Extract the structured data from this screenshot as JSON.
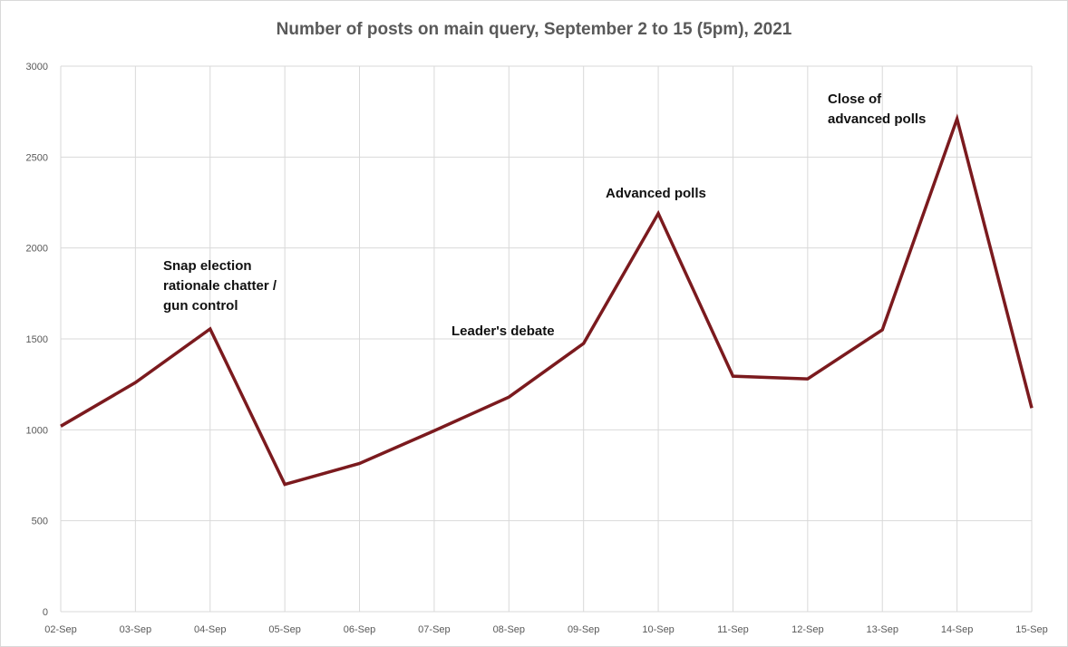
{
  "chart_data": {
    "type": "line",
    "title": "Number of posts on main query, September 2 to 15 (5pm), 2021",
    "xlabel": "",
    "ylabel": "",
    "categories": [
      "02-Sep",
      "03-Sep",
      "04-Sep",
      "05-Sep",
      "06-Sep",
      "07-Sep",
      "08-Sep",
      "09-Sep",
      "10-Sep",
      "11-Sep",
      "12-Sep",
      "13-Sep",
      "14-Sep",
      "15-Sep"
    ],
    "series": [
      {
        "values": [
          1020,
          1260,
          1555,
          700,
          815,
          995,
          1180,
          1475,
          2190,
          1295,
          1280,
          1550,
          2710,
          1120
        ]
      }
    ],
    "ylim": [
      0,
      3000
    ],
    "yticks": [
      "0",
      "500",
      "1000",
      "1500",
      "2000",
      "2500",
      "3000"
    ],
    "grid": true,
    "legend": "none",
    "line_color": "#7b1a1e",
    "annotations": [
      {
        "lines": [
          "Snap election",
          "rationale chatter /",
          "gun control"
        ],
        "category": "04-Sep"
      },
      {
        "lines": [
          "Leader's debate"
        ],
        "category": "08-Sep"
      },
      {
        "lines": [
          "Advanced polls"
        ],
        "category": "10-Sep"
      },
      {
        "lines": [
          "Close of",
          "advanced polls"
        ],
        "category": "14-Sep"
      }
    ]
  }
}
